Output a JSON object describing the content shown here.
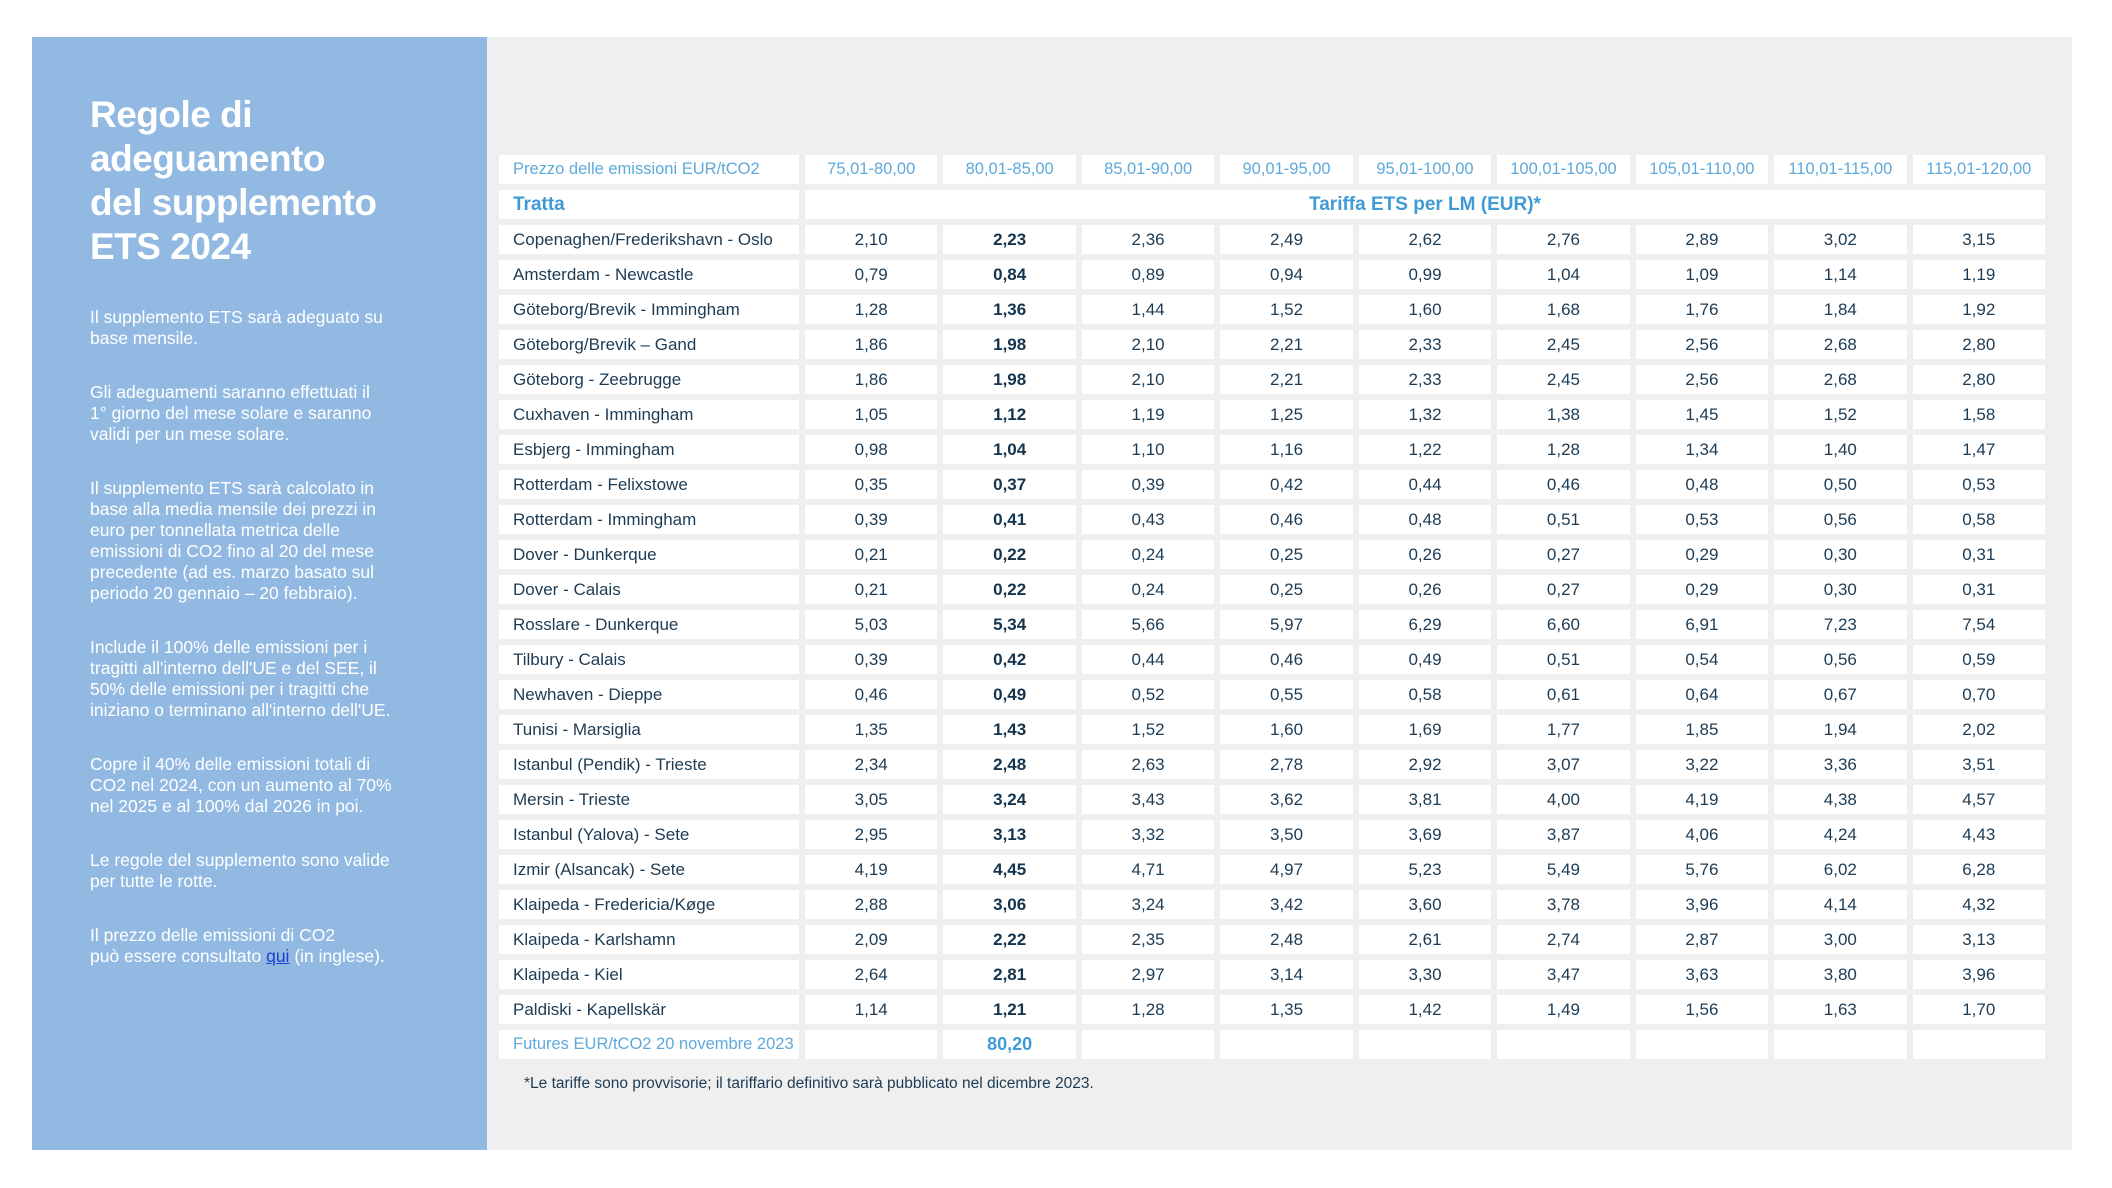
{
  "colors": {
    "sidebar-blue": "#92b9e2",
    "panel-gray": "#efefef",
    "navy": "#1d3b53",
    "head-blue": "#5ea9db",
    "accent-blue": "#3f9ad6",
    "link-blue": "#1f3fd0"
  },
  "sidebar": {
    "title": "Regole di\nadeguamento\ndel supplemento\nETS 2024",
    "paragraphs": [
      "Il supplemento ETS sarà adeguato su\nbase mensile.",
      "Gli adeguamenti saranno effettuati il\n1° giorno del mese solare e saranno\nvalidi per un mese solare.",
      "Il supplemento ETS sarà calcolato in\nbase alla media mensile dei prezzi in\neuro per tonnellata metrica delle\nemissioni di CO2 fino al 20 del mese\nprecedente (ad es. marzo basato sul\nperiodo 20 gennaio – 20 febbraio).",
      "Include il 100% delle emissioni per i\ntragitti all'interno dell'UE e del SEE, il\n50% delle emissioni per i tragitti che\niniziano o terminano all'interno dell'UE.",
      "Copre il 40% delle emissioni totali di\nCO2 nel 2024, con un aumento al 70%\nnel 2025 e al 100% dal 2026 in poi.",
      "Le regole del supplemento sono valide\nper tutte le rotte."
    ],
    "note": {
      "pre": "Il prezzo delle emissioni di CO2\npuò essere consultato ",
      "link": "qui",
      "post": " (in inglese)."
    }
  },
  "table": {
    "corner_label": "Prezzo delle emissioni EUR/tCO2",
    "price_ranges": [
      "75,01-80,00",
      "80,01-85,00",
      "85,01-90,00",
      "90,01-95,00",
      "95,01-100,00",
      "100,01-105,00",
      "105,01-110,00",
      "110,01-115,00",
      "115,01-120,00"
    ],
    "row_header": "Tratta",
    "col_group_header": "Tariffa ETS per LM (EUR)*",
    "highlight_column_index": 1,
    "rows": [
      {
        "route": "Copenaghen/Frederikshavn - Oslo",
        "values": [
          "2,10",
          "2,23",
          "2,36",
          "2,49",
          "2,62",
          "2,76",
          "2,89",
          "3,02",
          "3,15"
        ]
      },
      {
        "route": "Amsterdam - Newcastle",
        "values": [
          "0,79",
          "0,84",
          "0,89",
          "0,94",
          "0,99",
          "1,04",
          "1,09",
          "1,14",
          "1,19"
        ]
      },
      {
        "route": "Göteborg/Brevik - Immingham",
        "values": [
          "1,28",
          "1,36",
          "1,44",
          "1,52",
          "1,60",
          "1,68",
          "1,76",
          "1,84",
          "1,92"
        ]
      },
      {
        "route": "Göteborg/Brevik – Gand",
        "values": [
          "1,86",
          "1,98",
          "2,10",
          "2,21",
          "2,33",
          "2,45",
          "2,56",
          "2,68",
          "2,80"
        ]
      },
      {
        "route": "Göteborg - Zeebrugge",
        "values": [
          "1,86",
          "1,98",
          "2,10",
          "2,21",
          "2,33",
          "2,45",
          "2,56",
          "2,68",
          "2,80"
        ]
      },
      {
        "route": "Cuxhaven - Immingham",
        "values": [
          "1,05",
          "1,12",
          "1,19",
          "1,25",
          "1,32",
          "1,38",
          "1,45",
          "1,52",
          "1,58"
        ]
      },
      {
        "route": "Esbjerg - Immingham",
        "values": [
          "0,98",
          "1,04",
          "1,10",
          "1,16",
          "1,22",
          "1,28",
          "1,34",
          "1,40",
          "1,47"
        ]
      },
      {
        "route": "Rotterdam - Felixstowe",
        "values": [
          "0,35",
          "0,37",
          "0,39",
          "0,42",
          "0,44",
          "0,46",
          "0,48",
          "0,50",
          "0,53"
        ]
      },
      {
        "route": "Rotterdam - Immingham",
        "values": [
          "0,39",
          "0,41",
          "0,43",
          "0,46",
          "0,48",
          "0,51",
          "0,53",
          "0,56",
          "0,58"
        ]
      },
      {
        "route": "Dover - Dunkerque",
        "values": [
          "0,21",
          "0,22",
          "0,24",
          "0,25",
          "0,26",
          "0,27",
          "0,29",
          "0,30",
          "0,31"
        ]
      },
      {
        "route": "Dover - Calais",
        "values": [
          "0,21",
          "0,22",
          "0,24",
          "0,25",
          "0,26",
          "0,27",
          "0,29",
          "0,30",
          "0,31"
        ]
      },
      {
        "route": "Rosslare - Dunkerque",
        "values": [
          "5,03",
          "5,34",
          "5,66",
          "5,97",
          "6,29",
          "6,60",
          "6,91",
          "7,23",
          "7,54"
        ]
      },
      {
        "route": "Tilbury - Calais",
        "values": [
          "0,39",
          "0,42",
          "0,44",
          "0,46",
          "0,49",
          "0,51",
          "0,54",
          "0,56",
          "0,59"
        ]
      },
      {
        "route": "Newhaven - Dieppe",
        "values": [
          "0,46",
          "0,49",
          "0,52",
          "0,55",
          "0,58",
          "0,61",
          "0,64",
          "0,67",
          "0,70"
        ]
      },
      {
        "route": "Tunisi - Marsiglia",
        "values": [
          "1,35",
          "1,43",
          "1,52",
          "1,60",
          "1,69",
          "1,77",
          "1,85",
          "1,94",
          "2,02"
        ]
      },
      {
        "route": "Istanbul (Pendik) - Trieste",
        "values": [
          "2,34",
          "2,48",
          "2,63",
          "2,78",
          "2,92",
          "3,07",
          "3,22",
          "3,36",
          "3,51"
        ]
      },
      {
        "route": "Mersin - Trieste",
        "values": [
          "3,05",
          "3,24",
          "3,43",
          "3,62",
          "3,81",
          "4,00",
          "4,19",
          "4,38",
          "4,57"
        ]
      },
      {
        "route": "Istanbul (Yalova) - Sete",
        "values": [
          "2,95",
          "3,13",
          "3,32",
          "3,50",
          "3,69",
          "3,87",
          "4,06",
          "4,24",
          "4,43"
        ]
      },
      {
        "route": "Izmir (Alsancak) - Sete",
        "values": [
          "4,19",
          "4,45",
          "4,71",
          "4,97",
          "5,23",
          "5,49",
          "5,76",
          "6,02",
          "6,28"
        ]
      },
      {
        "route": "Klaipeda - Fredericia/Køge",
        "values": [
          "2,88",
          "3,06",
          "3,24",
          "3,42",
          "3,60",
          "3,78",
          "3,96",
          "4,14",
          "4,32"
        ]
      },
      {
        "route": "Klaipeda - Karlshamn",
        "values": [
          "2,09",
          "2,22",
          "2,35",
          "2,48",
          "2,61",
          "2,74",
          "2,87",
          "3,00",
          "3,13"
        ]
      },
      {
        "route": "Klaipeda - Kiel",
        "values": [
          "2,64",
          "2,81",
          "2,97",
          "3,14",
          "3,30",
          "3,47",
          "3,63",
          "3,80",
          "3,96"
        ]
      },
      {
        "route": "Paldiski - Kapellskär",
        "values": [
          "1,14",
          "1,21",
          "1,28",
          "1,35",
          "1,42",
          "1,49",
          "1,56",
          "1,63",
          "1,70"
        ]
      }
    ],
    "futures": {
      "label": "Futures EUR/tCO2 20 novembre 2023",
      "value": "80,20",
      "value_column_index": 1
    },
    "footnote": "*Le tariffe sono provvisorie; il tariffario definitivo sarà pubblicato nel dicembre 2023."
  }
}
